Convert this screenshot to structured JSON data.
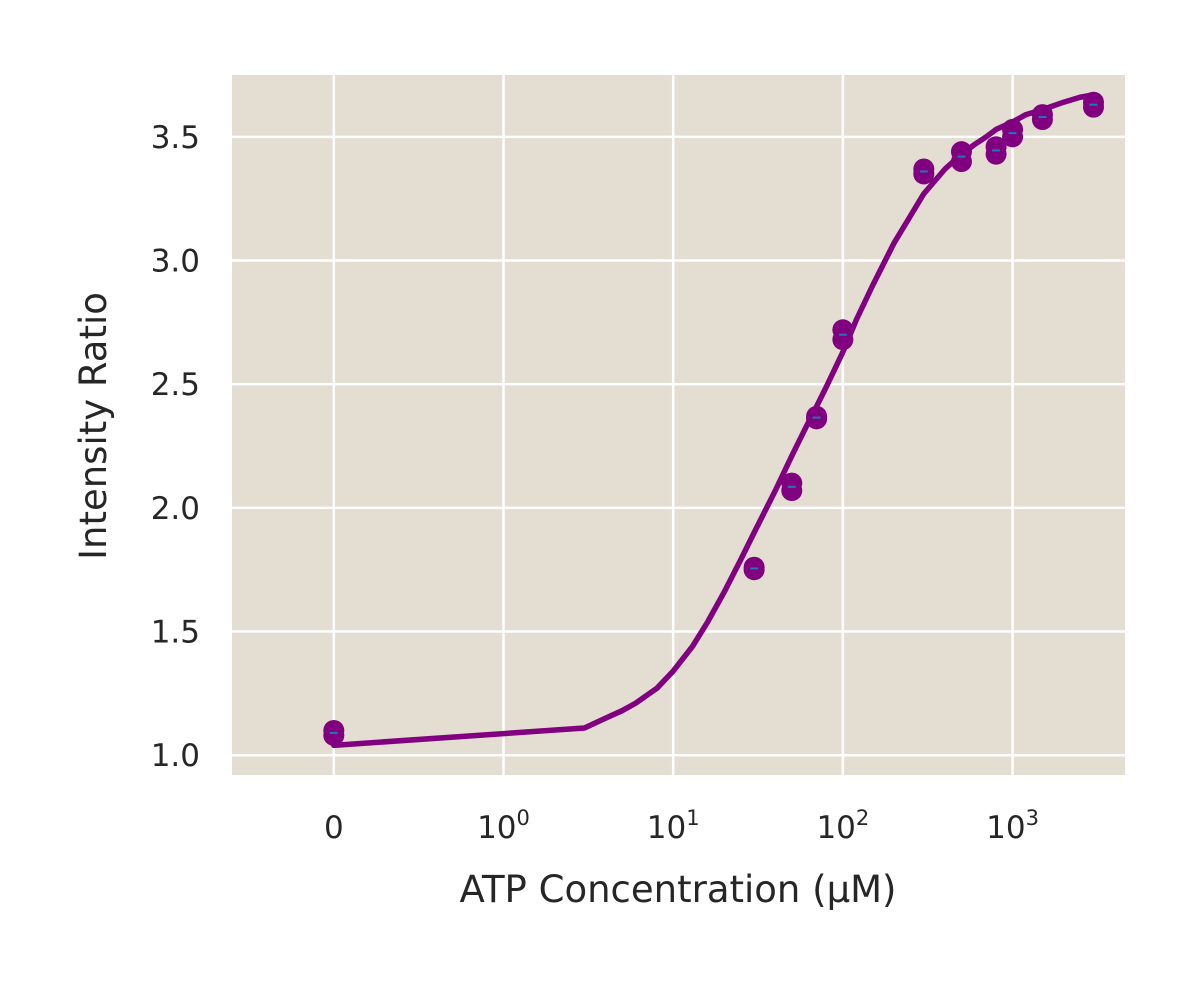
{
  "chart_data": {
    "type": "scatter",
    "xlabel": "ATP Concentration (μM)",
    "ylabel": "Intensity Ratio",
    "xscale": "symlog",
    "xlim": [
      -0.6,
      4600
    ],
    "ylim": [
      0.92,
      3.75
    ],
    "grid": true,
    "colors": {
      "background": "#e3ddd2",
      "grid": "#ffffff",
      "marker": "#800080",
      "errorbar": "#1f77b4",
      "fit": "#800080"
    },
    "x_ticks": [
      {
        "value": 0,
        "base": "0",
        "exp": ""
      },
      {
        "value": 1,
        "base": "10",
        "exp": "0"
      },
      {
        "value": 10,
        "base": "10",
        "exp": "1"
      },
      {
        "value": 100,
        "base": "10",
        "exp": "2"
      },
      {
        "value": 1000,
        "base": "10",
        "exp": "3"
      }
    ],
    "y_ticks": [
      {
        "value": 1.0,
        "label": "1.0"
      },
      {
        "value": 1.5,
        "label": "1.5"
      },
      {
        "value": 2.0,
        "label": "2.0"
      },
      {
        "value": 2.5,
        "label": "2.5"
      },
      {
        "value": 3.0,
        "label": "3.0"
      },
      {
        "value": 3.5,
        "label": "3.5"
      }
    ],
    "series": [
      {
        "kind": "points",
        "x": [
          0,
          0,
          30,
          30,
          50,
          50,
          70,
          70,
          100,
          100,
          300,
          300,
          500,
          500,
          800,
          800,
          1000,
          1000,
          1500,
          1500,
          3000,
          3000
        ],
        "y": [
          1.08,
          1.1,
          1.75,
          1.76,
          2.07,
          2.1,
          2.36,
          2.37,
          2.68,
          2.72,
          3.35,
          3.37,
          3.4,
          3.44,
          3.43,
          3.46,
          3.5,
          3.53,
          3.57,
          3.59,
          3.62,
          3.64
        ]
      },
      {
        "kind": "fit",
        "x": [
          0,
          3,
          4,
          5,
          6,
          8,
          10,
          13,
          16,
          20,
          25,
          30,
          40,
          50,
          60,
          70,
          80,
          100,
          120,
          150,
          200,
          250,
          300,
          400,
          500,
          600,
          700,
          800,
          1000,
          1200,
          1500,
          2000,
          2500,
          3000
        ],
        "y": [
          1.04,
          1.11,
          1.15,
          1.18,
          1.21,
          1.27,
          1.34,
          1.44,
          1.54,
          1.66,
          1.79,
          1.9,
          2.07,
          2.21,
          2.32,
          2.41,
          2.49,
          2.63,
          2.76,
          2.9,
          3.07,
          3.18,
          3.27,
          3.37,
          3.43,
          3.47,
          3.5,
          3.53,
          3.56,
          3.59,
          3.61,
          3.64,
          3.66,
          3.67
        ]
      }
    ]
  }
}
